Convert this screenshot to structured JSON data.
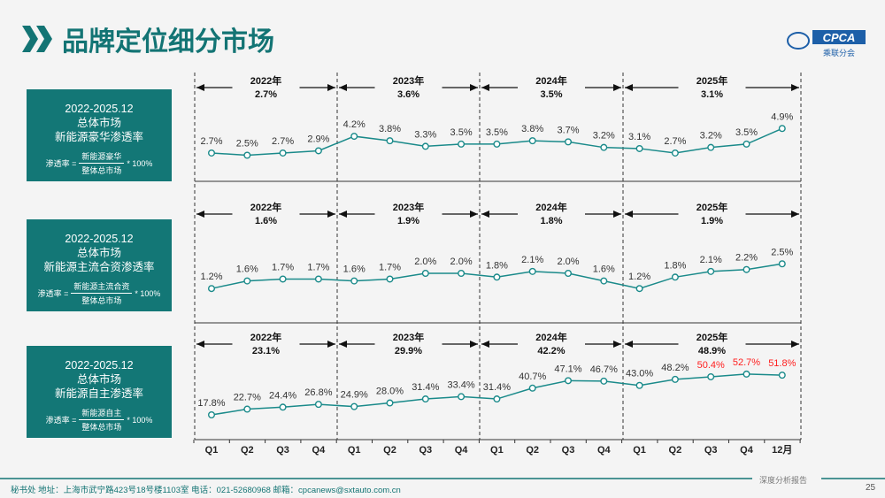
{
  "header": {
    "title": "品牌定位细分市场",
    "logo_text": "CPCA",
    "logo_sub": "乘联分会"
  },
  "colors": {
    "accent": "#137776",
    "line": "#1a8a8a",
    "highlight": "#ff2020"
  },
  "x_labels": [
    "Q1",
    "Q2",
    "Q3",
    "Q4",
    "Q1",
    "Q2",
    "Q3",
    "Q4",
    "Q1",
    "Q2",
    "Q3",
    "Q4",
    "Q1",
    "Q2",
    "Q3",
    "Q4",
    "12月"
  ],
  "panels": [
    {
      "line1": "2022-2025.12",
      "line2": "总体市场",
      "line3": "新能源豪华渗透率",
      "formula_label": "渗透率 =",
      "numerator": "新能源豪华",
      "denominator": "整体总市场",
      "multiplier": "* 100%",
      "years": [
        {
          "year": "2022年",
          "value": "2.7%"
        },
        {
          "year": "2023年",
          "value": "3.6%"
        },
        {
          "year": "2024年",
          "value": "3.5%"
        },
        {
          "year": "2025年",
          "value": "3.1%"
        }
      ],
      "values": [
        2.7,
        2.5,
        2.7,
        2.9,
        4.2,
        3.8,
        3.3,
        3.5,
        3.5,
        3.8,
        3.7,
        3.2,
        3.1,
        2.7,
        3.2,
        3.5,
        4.9
      ],
      "labels": [
        "2.7%",
        "2.5%",
        "2.7%",
        "2.9%",
        "4.2%",
        "3.8%",
        "3.3%",
        "3.5%",
        "3.5%",
        "3.8%",
        "3.7%",
        "3.2%",
        "3.1%",
        "2.7%",
        "3.2%",
        "3.5%",
        "4.9%"
      ],
      "highlighted": []
    },
    {
      "line1": "2022-2025.12",
      "line2": "总体市场",
      "line3": "新能源主流合资渗透率",
      "formula_label": "渗透率 =",
      "numerator": "新能源主流合资",
      "denominator": "整体总市场",
      "multiplier": "* 100%",
      "years": [
        {
          "year": "2022年",
          "value": "1.6%"
        },
        {
          "year": "2023年",
          "value": "1.9%"
        },
        {
          "year": "2024年",
          "value": "1.8%"
        },
        {
          "year": "2025年",
          "value": "1.9%"
        }
      ],
      "values": [
        1.2,
        1.6,
        1.7,
        1.7,
        1.6,
        1.7,
        2.0,
        2.0,
        1.8,
        2.1,
        2.0,
        1.6,
        1.2,
        1.8,
        2.1,
        2.2,
        2.5
      ],
      "labels": [
        "1.2%",
        "1.6%",
        "1.7%",
        "1.7%",
        "1.6%",
        "1.7%",
        "2.0%",
        "2.0%",
        "1.8%",
        "2.1%",
        "2.0%",
        "1.6%",
        "1.2%",
        "1.8%",
        "2.1%",
        "2.2%",
        "2.5%"
      ],
      "highlighted": []
    },
    {
      "line1": "2022-2025.12",
      "line2": "总体市场",
      "line3": "新能源自主渗透率",
      "formula_label": "渗透率 =",
      "numerator": "新能源自主",
      "denominator": "整体总市场",
      "multiplier": "* 100%",
      "years": [
        {
          "year": "2022年",
          "value": "23.1%"
        },
        {
          "year": "2023年",
          "value": "29.9%"
        },
        {
          "year": "2024年",
          "value": "42.2%"
        },
        {
          "year": "2025年",
          "value": "48.9%"
        }
      ],
      "values": [
        17.8,
        22.7,
        24.4,
        26.8,
        24.9,
        28.0,
        31.4,
        33.4,
        31.4,
        40.7,
        47.1,
        46.7,
        43.0,
        48.2,
        50.4,
        52.7,
        51.8
      ],
      "labels": [
        "17.8%",
        "22.7%",
        "24.4%",
        "26.8%",
        "24.9%",
        "28.0%",
        "31.4%",
        "33.4%",
        "31.4%",
        "40.7%",
        "47.1%",
        "46.7%",
        "43.0%",
        "48.2%",
        "50.4%",
        "52.7%",
        "51.8%"
      ],
      "highlighted": [
        14,
        15,
        16
      ]
    }
  ],
  "footer": {
    "address": "秘书处   地址：上海市武宁路423号18号楼1103室  电话：021-52680968   邮箱：cpcanews@sxtauto.com.cn",
    "report": "深度分析报告",
    "page": "25"
  }
}
